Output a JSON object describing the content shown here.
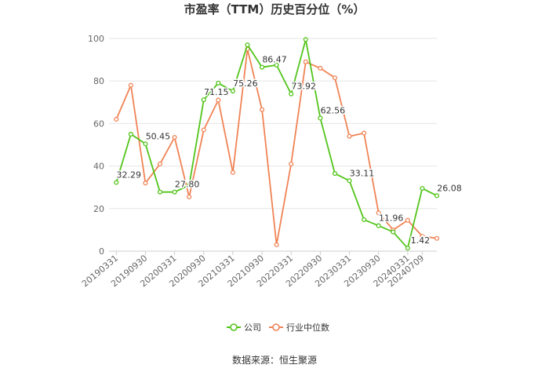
{
  "chart_data": {
    "type": "line",
    "title": "市盈率（TTM）历史百分位（%）",
    "source": "数据来源：恒生聚源",
    "ylim": [
      0,
      100
    ],
    "yticks": [
      0,
      20,
      40,
      60,
      80,
      100
    ],
    "grid": true,
    "legend_position": "bottom",
    "x_tick_labels": [
      "20190331",
      "20190930",
      "20200331",
      "20200930",
      "20210331",
      "20210930",
      "20220331",
      "20220930",
      "20230331",
      "20230930",
      "20240331",
      "20240709"
    ],
    "x_tick_index": [
      0,
      2,
      4,
      6,
      8,
      10,
      12,
      14,
      16,
      18,
      20,
      21
    ],
    "series": [
      {
        "name": "公司",
        "color": "#52c41a",
        "values": [
          32.29,
          55.0,
          50.45,
          27.8,
          27.8,
          31.0,
          71.15,
          79.0,
          75.26,
          97.0,
          86.47,
          87.5,
          73.92,
          99.5,
          62.56,
          36.5,
          33.11,
          14.8,
          11.96,
          9.0,
          1.42,
          29.5,
          26.08
        ]
      },
      {
        "name": "行业中位数",
        "color": "#f08355",
        "values": [
          62.0,
          78.0,
          32.0,
          41.0,
          53.5,
          25.5,
          57.0,
          71.0,
          37.0,
          95.0,
          66.5,
          3.0,
          41.0,
          89.0,
          86.0,
          81.5,
          54.0,
          55.5,
          18.0,
          10.0,
          14.5,
          7.0,
          6.0
        ]
      }
    ],
    "data_labels": [
      {
        "series": 0,
        "index": 0,
        "text": "32.29"
      },
      {
        "series": 0,
        "index": 2,
        "text": "50.45"
      },
      {
        "series": 0,
        "index": 4,
        "text": "27.80"
      },
      {
        "series": 0,
        "index": 6,
        "text": "71.15"
      },
      {
        "series": 0,
        "index": 8,
        "text": "75.26"
      },
      {
        "series": 0,
        "index": 10,
        "text": "86.47"
      },
      {
        "series": 0,
        "index": 12,
        "text": "73.92"
      },
      {
        "series": 0,
        "index": 14,
        "text": "62.56"
      },
      {
        "series": 0,
        "index": 16,
        "text": "33.11"
      },
      {
        "series": 0,
        "index": 18,
        "text": "11.96"
      },
      {
        "series": 0,
        "index": 20,
        "text": "1.42"
      },
      {
        "series": 0,
        "index": 22,
        "text": "26.08"
      }
    ]
  }
}
